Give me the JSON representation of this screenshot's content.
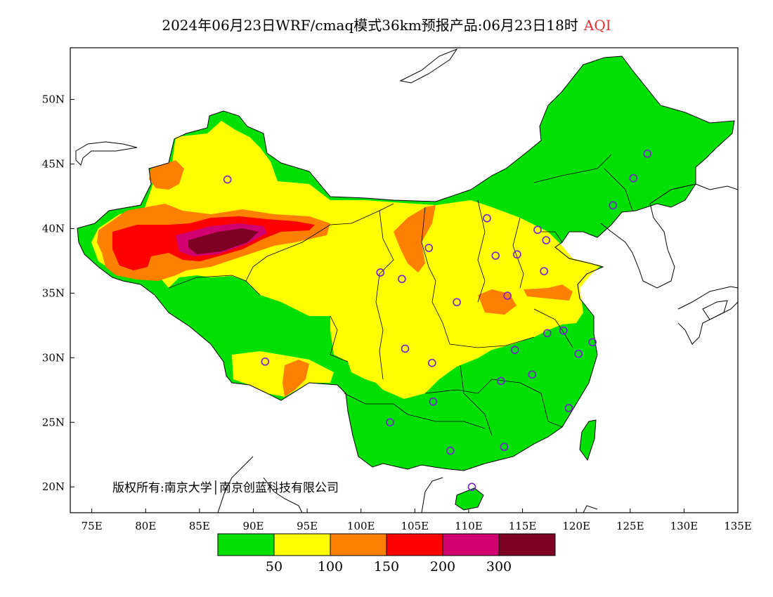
{
  "title": {
    "main": "2024年06月23日WRF/cmaq模式36km预报产品:06月23日18时",
    "variable": "AQI"
  },
  "axes": {
    "lon_labels": [
      "75E",
      "80E",
      "85E",
      "90E",
      "95E",
      "100E",
      "105E",
      "110E",
      "115E",
      "120E",
      "125E",
      "130E",
      "135E"
    ],
    "lat_labels": [
      "50N",
      "45N",
      "40N",
      "35N",
      "30N",
      "25N",
      "20N"
    ],
    "lon_range": [
      73,
      135
    ],
    "lat_range": [
      18,
      54
    ]
  },
  "copyright": "版权所有:南京大学│南京创蓝科技有限公司",
  "colorbar": {
    "colors": [
      "#00e000",
      "#ffff00",
      "#ff8000",
      "#ff0000",
      "#d0006f",
      "#7e0023"
    ],
    "labels": [
      "50",
      "100",
      "150",
      "200",
      "300"
    ]
  },
  "stations": [
    {
      "lon": 87.6,
      "lat": 43.8
    },
    {
      "lon": 91.1,
      "lat": 29.7
    },
    {
      "lon": 101.8,
      "lat": 36.6
    },
    {
      "lon": 103.8,
      "lat": 36.1
    },
    {
      "lon": 106.3,
      "lat": 38.5
    },
    {
      "lon": 104.1,
      "lat": 30.7
    },
    {
      "lon": 106.6,
      "lat": 29.6
    },
    {
      "lon": 102.7,
      "lat": 25.0
    },
    {
      "lon": 106.7,
      "lat": 26.6
    },
    {
      "lon": 108.9,
      "lat": 34.3
    },
    {
      "lon": 111.7,
      "lat": 40.8
    },
    {
      "lon": 112.5,
      "lat": 37.9
    },
    {
      "lon": 114.5,
      "lat": 38.0
    },
    {
      "lon": 116.4,
      "lat": 39.9
    },
    {
      "lon": 117.2,
      "lat": 39.1
    },
    {
      "lon": 113.6,
      "lat": 34.8
    },
    {
      "lon": 117.0,
      "lat": 36.7
    },
    {
      "lon": 114.3,
      "lat": 30.6
    },
    {
      "lon": 113.0,
      "lat": 28.2
    },
    {
      "lon": 115.9,
      "lat": 28.7
    },
    {
      "lon": 117.3,
      "lat": 31.9
    },
    {
      "lon": 118.8,
      "lat": 32.1
    },
    {
      "lon": 121.5,
      "lat": 31.2
    },
    {
      "lon": 120.2,
      "lat": 30.3
    },
    {
      "lon": 119.3,
      "lat": 26.1
    },
    {
      "lon": 113.3,
      "lat": 23.1
    },
    {
      "lon": 108.3,
      "lat": 22.8
    },
    {
      "lon": 110.3,
      "lat": 20.0
    },
    {
      "lon": 123.4,
      "lat": 41.8
    },
    {
      "lon": 125.3,
      "lat": 43.9
    },
    {
      "lon": 126.6,
      "lat": 45.8
    }
  ]
}
